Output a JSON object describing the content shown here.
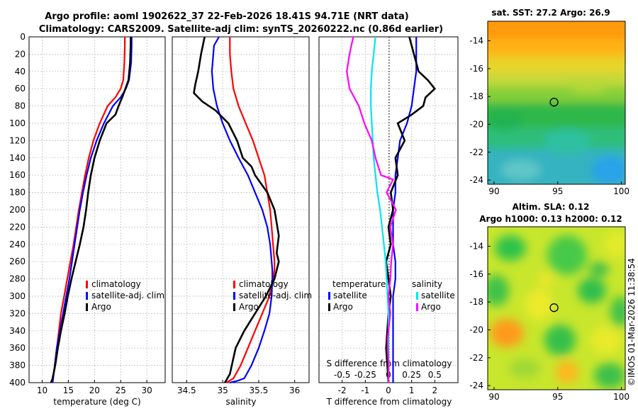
{
  "title": {
    "line1": "Argo profile: aoml 1902622_37 22-Feb-2026 18.41S 94.71E (NRT data)",
    "line2": "Climatology: CARS2009. Satellite-adj clim: synTS_20260222.nc (0.86d earlier)"
  },
  "watermark": "©IMOS 01-Mar-2026 11:38:54",
  "colors": {
    "climatology": "#ff0000",
    "satellite": "#0000ff",
    "argo": "#000000",
    "salinity_satellite": "#00e5ee",
    "salinity_argo": "#ff00ff"
  },
  "chart_data": [
    {
      "type": "line",
      "id": "temperature",
      "xlabel": "temperature (deg C)",
      "ylabel": "",
      "xlim": [
        7.5,
        33.5
      ],
      "ylim": [
        400,
        0
      ],
      "xticks": [
        10,
        15,
        20,
        25,
        30
      ],
      "yticks": [
        0,
        20,
        40,
        60,
        80,
        100,
        120,
        140,
        160,
        180,
        200,
        220,
        240,
        260,
        280,
        300,
        320,
        340,
        360,
        380,
        400
      ],
      "legend": [
        "climatology",
        "satellite-adj. clim",
        "Argo"
      ],
      "series": [
        {
          "name": "climatology",
          "color": "#ff0000",
          "x": [
            25.8,
            25.8,
            25.7,
            25.5,
            25.0,
            24.0,
            22.5,
            21.0,
            19.8,
            18.9,
            18.2,
            17.6,
            17.0,
            16.5,
            16.0,
            15.4,
            14.8,
            14.2,
            13.6,
            13.2,
            12.8,
            12.4,
            12.0
          ],
          "y": [
            0,
            10,
            30,
            50,
            60,
            70,
            80,
            100,
            120,
            140,
            160,
            180,
            200,
            220,
            240,
            260,
            280,
            300,
            320,
            340,
            360,
            380,
            400
          ]
        },
        {
          "name": "satellite-adj. clim",
          "color": "#0000ff",
          "x": [
            27.1,
            27.1,
            27.0,
            26.6,
            26.0,
            25.0,
            23.5,
            21.8,
            20.4,
            19.3,
            18.5,
            17.8,
            17.2,
            16.7,
            16.2,
            15.7,
            15.2,
            14.6,
            14.0,
            13.4,
            12.8,
            12.4,
            12.0
          ],
          "y": [
            0,
            10,
            30,
            50,
            60,
            70,
            80,
            100,
            120,
            140,
            160,
            180,
            200,
            220,
            240,
            260,
            280,
            300,
            320,
            340,
            360,
            380,
            400
          ]
        },
        {
          "name": "Argo",
          "color": "#000000",
          "x": [
            26.9,
            26.9,
            26.8,
            26.5,
            25.9,
            25.3,
            24.6,
            24.0,
            22.3,
            21.0,
            20.0,
            19.3,
            18.8,
            18.4,
            17.9,
            17.2,
            16.4,
            15.6,
            14.9,
            14.3,
            13.6,
            13.0,
            12.5,
            12.0,
            11.7
          ],
          "y": [
            0,
            10,
            30,
            50,
            60,
            70,
            80,
            90,
            100,
            120,
            140,
            160,
            180,
            200,
            220,
            240,
            260,
            280,
            300,
            320,
            340,
            360,
            380,
            395,
            400
          ]
        }
      ]
    },
    {
      "type": "line",
      "id": "salinity",
      "xlabel": "salinity",
      "ylabel": "",
      "xlim": [
        34.3,
        36.2
      ],
      "ylim": [
        400,
        0
      ],
      "xticks": [
        34.5,
        35,
        35.5,
        36
      ],
      "xticklabels": [
        "34.5",
        "35",
        "35.5",
        "36"
      ],
      "legend": [
        "climatology",
        "satellite-adj. clim",
        "Argo"
      ],
      "series": [
        {
          "name": "climatology",
          "color": "#ff0000",
          "x": [
            35.1,
            35.1,
            35.12,
            35.15,
            35.22,
            35.32,
            35.42,
            35.5,
            35.58,
            35.62,
            35.66,
            35.68,
            35.7,
            35.72,
            35.72,
            35.7,
            35.65,
            35.55,
            35.45,
            35.35,
            35.25,
            35.15,
            35.05
          ],
          "y": [
            0,
            20,
            40,
            60,
            80,
            100,
            120,
            140,
            160,
            180,
            200,
            220,
            240,
            260,
            270,
            280,
            300,
            320,
            340,
            360,
            380,
            395,
            400
          ]
        },
        {
          "name": "satellite-adj. clim",
          "color": "#0000ff",
          "x": [
            34.95,
            34.88,
            34.85,
            34.87,
            34.92,
            35.0,
            35.1,
            35.22,
            35.35,
            35.45,
            35.55,
            35.62,
            35.66,
            35.68,
            35.69,
            35.69,
            35.68,
            35.65,
            35.58,
            35.5,
            35.4,
            35.3,
            35.2,
            35.1
          ],
          "y": [
            0,
            10,
            40,
            60,
            80,
            100,
            120,
            140,
            160,
            180,
            200,
            220,
            240,
            260,
            270,
            280,
            300,
            320,
            340,
            360,
            380,
            395,
            398,
            400
          ]
        },
        {
          "name": "Argo",
          "color": "#000000",
          "x": [
            34.75,
            34.7,
            34.66,
            34.62,
            34.6,
            34.72,
            34.9,
            35.08,
            35.2,
            35.28,
            35.4,
            35.45,
            35.62,
            35.72,
            35.78,
            35.75,
            35.78,
            35.72,
            35.6,
            35.45,
            35.3,
            35.18,
            35.1,
            35.03
          ],
          "y": [
            0,
            20,
            40,
            55,
            65,
            75,
            85,
            100,
            120,
            140,
            150,
            160,
            180,
            200,
            230,
            250,
            260,
            280,
            300,
            320,
            340,
            360,
            390,
            400
          ]
        }
      ]
    },
    {
      "type": "line",
      "id": "difference",
      "xlabel": "T difference from climatology",
      "xlabel_top": "S difference from climatology",
      "xlim": [
        -3,
        3.0
      ],
      "ylim": [
        400,
        0
      ],
      "xticks": [
        -2,
        -1,
        0,
        1,
        2
      ],
      "xticks_top": [
        -0.5,
        -0.25,
        0,
        0.25,
        0.5
      ],
      "xticklabels_top": [
        "-0.5",
        "-0.25",
        "0",
        "0.25",
        "0.5"
      ],
      "legend_temperature": {
        "title": "temperature",
        "entries": [
          "satellite",
          "Argo"
        ]
      },
      "legend_salinity": {
        "title": "salinity",
        "entries": [
          "satellite",
          "Argo"
        ]
      },
      "series": [
        {
          "name": "temperature satellite",
          "color": "#0000ff",
          "x": [
            1.2,
            1.2,
            1.2,
            1.1,
            1.0,
            0.8,
            0.5,
            0.4,
            0.3,
            0.3,
            0.2,
            0.2,
            0.2,
            0.3,
            0.3,
            0.2,
            0.2,
            0.2,
            0.2,
            0.2
          ],
          "y": [
            0,
            20,
            40,
            60,
            80,
            100,
            120,
            140,
            160,
            180,
            200,
            220,
            240,
            260,
            280,
            300,
            320,
            340,
            360,
            400
          ]
        },
        {
          "name": "temperature Argo",
          "color": "#000000",
          "x": [
            0.9,
            1.1,
            1.3,
            1.7,
            2.0,
            1.6,
            1.5,
            1.0,
            0.4,
            0.7,
            0.3,
            0.4,
            0.1,
            0.2,
            0.0,
            0.1,
            -0.1,
            0.0,
            0.1,
            0.0,
            -0.1,
            0.0
          ],
          "y": [
            0,
            20,
            40,
            50,
            60,
            70,
            80,
            90,
            100,
            120,
            140,
            160,
            180,
            200,
            220,
            240,
            260,
            280,
            300,
            320,
            360,
            400
          ]
        },
        {
          "name": "salinity satellite",
          "color": "#00e5ee",
          "x": [
            -0.14,
            -0.16,
            -0.18,
            -0.19,
            -0.19,
            -0.18,
            -0.17,
            -0.16,
            -0.14,
            -0.12,
            -0.09,
            -0.07,
            -0.05,
            -0.03,
            -0.02,
            -0.01,
            0.0,
            0.0,
            0.0,
            0.0
          ],
          "y": [
            0,
            20,
            40,
            60,
            80,
            100,
            120,
            140,
            160,
            180,
            200,
            220,
            240,
            260,
            280,
            300,
            320,
            340,
            360,
            400
          ]
        },
        {
          "name": "salinity Argo",
          "color": "#ff00ff",
          "x": [
            -0.38,
            -0.42,
            -0.45,
            -0.42,
            -0.32,
            -0.26,
            -0.18,
            -0.14,
            -0.08,
            0.05,
            -0.02,
            0.08,
            0.02,
            0.05,
            0.03,
            0.02,
            0.0,
            0.02,
            -0.01,
            0.0,
            0.0
          ],
          "y": [
            0,
            20,
            40,
            60,
            80,
            100,
            120,
            140,
            160,
            165,
            180,
            200,
            220,
            240,
            260,
            280,
            300,
            320,
            350,
            380,
            400
          ]
        }
      ]
    },
    {
      "type": "heatmap",
      "id": "sst-map",
      "title": "sat. SST: 27.2 Argo: 26.9",
      "xlim": [
        89.5,
        100.3
      ],
      "ylim": [
        -24.3,
        -12.6
      ],
      "xticks": [
        90,
        95,
        100
      ],
      "yticks": [
        -14,
        -16,
        -18,
        -20,
        -22,
        -24
      ],
      "marker": {
        "lon": 94.71,
        "lat": -18.41
      }
    },
    {
      "type": "heatmap",
      "id": "sla-map",
      "title": "Altim. SLA: 0.12",
      "subtitle": "Argo h1000: 0.13 h2000: 0.12",
      "xlim": [
        89.5,
        100.3
      ],
      "ylim": [
        -24.3,
        -12.6
      ],
      "xticks": [
        90,
        95,
        100
      ],
      "yticks": [
        -14,
        -16,
        -18,
        -20,
        -22,
        -24
      ],
      "marker": {
        "lon": 94.71,
        "lat": -18.41
      }
    }
  ]
}
